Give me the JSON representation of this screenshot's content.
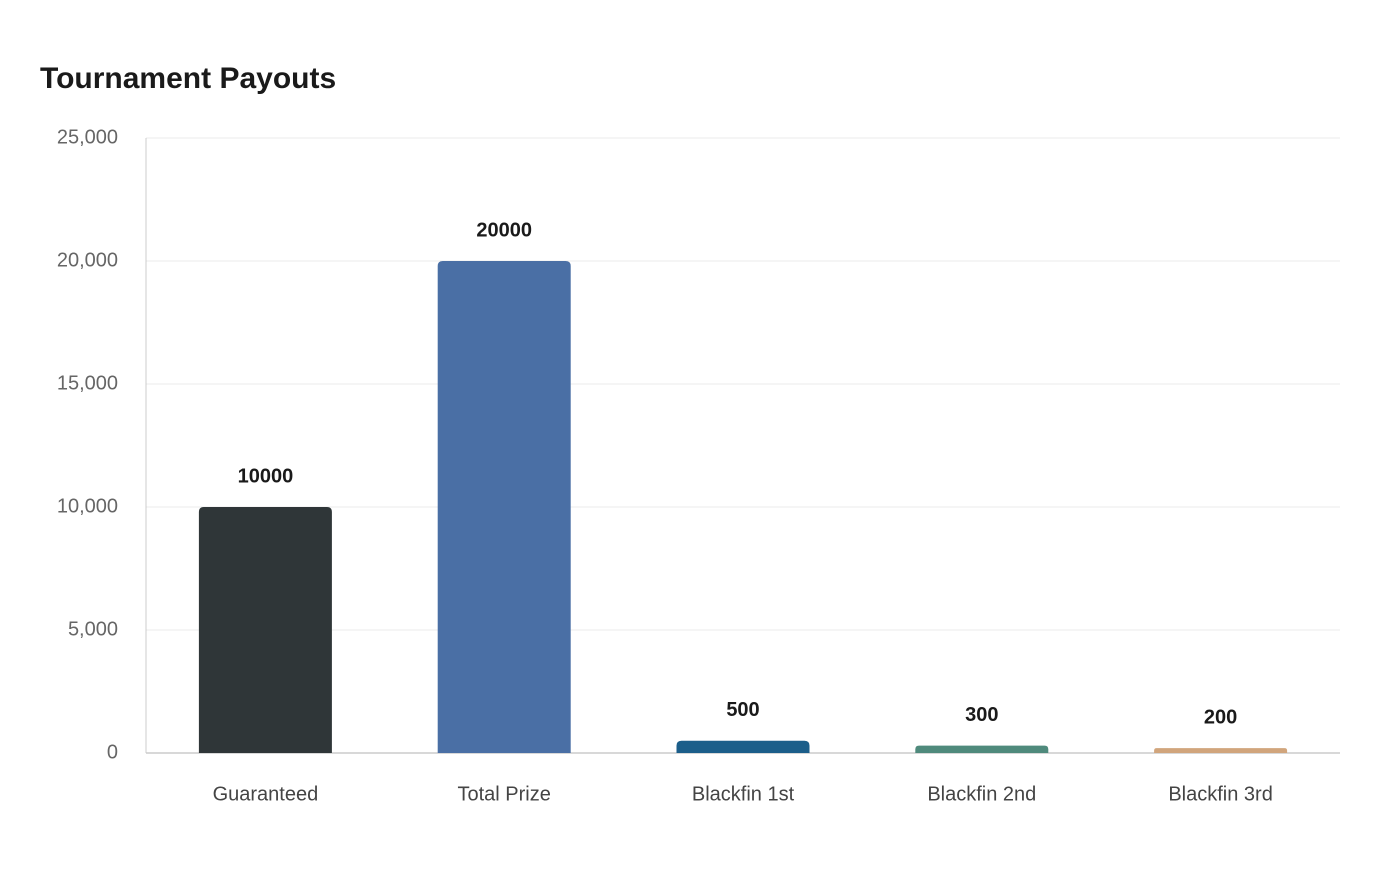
{
  "chart_data": {
    "type": "bar",
    "title": "Tournament Payouts",
    "categories": [
      "Guaranteed",
      "Total Prize",
      "Blackfin 1st",
      "Blackfin 2nd",
      "Blackfin 3rd"
    ],
    "values": [
      10000,
      20000,
      500,
      300,
      200
    ],
    "colors": [
      "#2f3638",
      "#4a6fa5",
      "#1b5e8a",
      "#4f8a7c",
      "#d1a57c"
    ],
    "ylim": [
      0,
      25000
    ],
    "yticks": [
      0,
      {
        "value": 5000,
        "label": "5,000"
      },
      {
        "value": 10000,
        "label": "10,000"
      },
      {
        "value": 15000,
        "label": "15,000"
      },
      {
        "value": 20000,
        "label": "20,000"
      },
      {
        "value": 25000,
        "label": "25,000"
      }
    ],
    "grid": true
  }
}
